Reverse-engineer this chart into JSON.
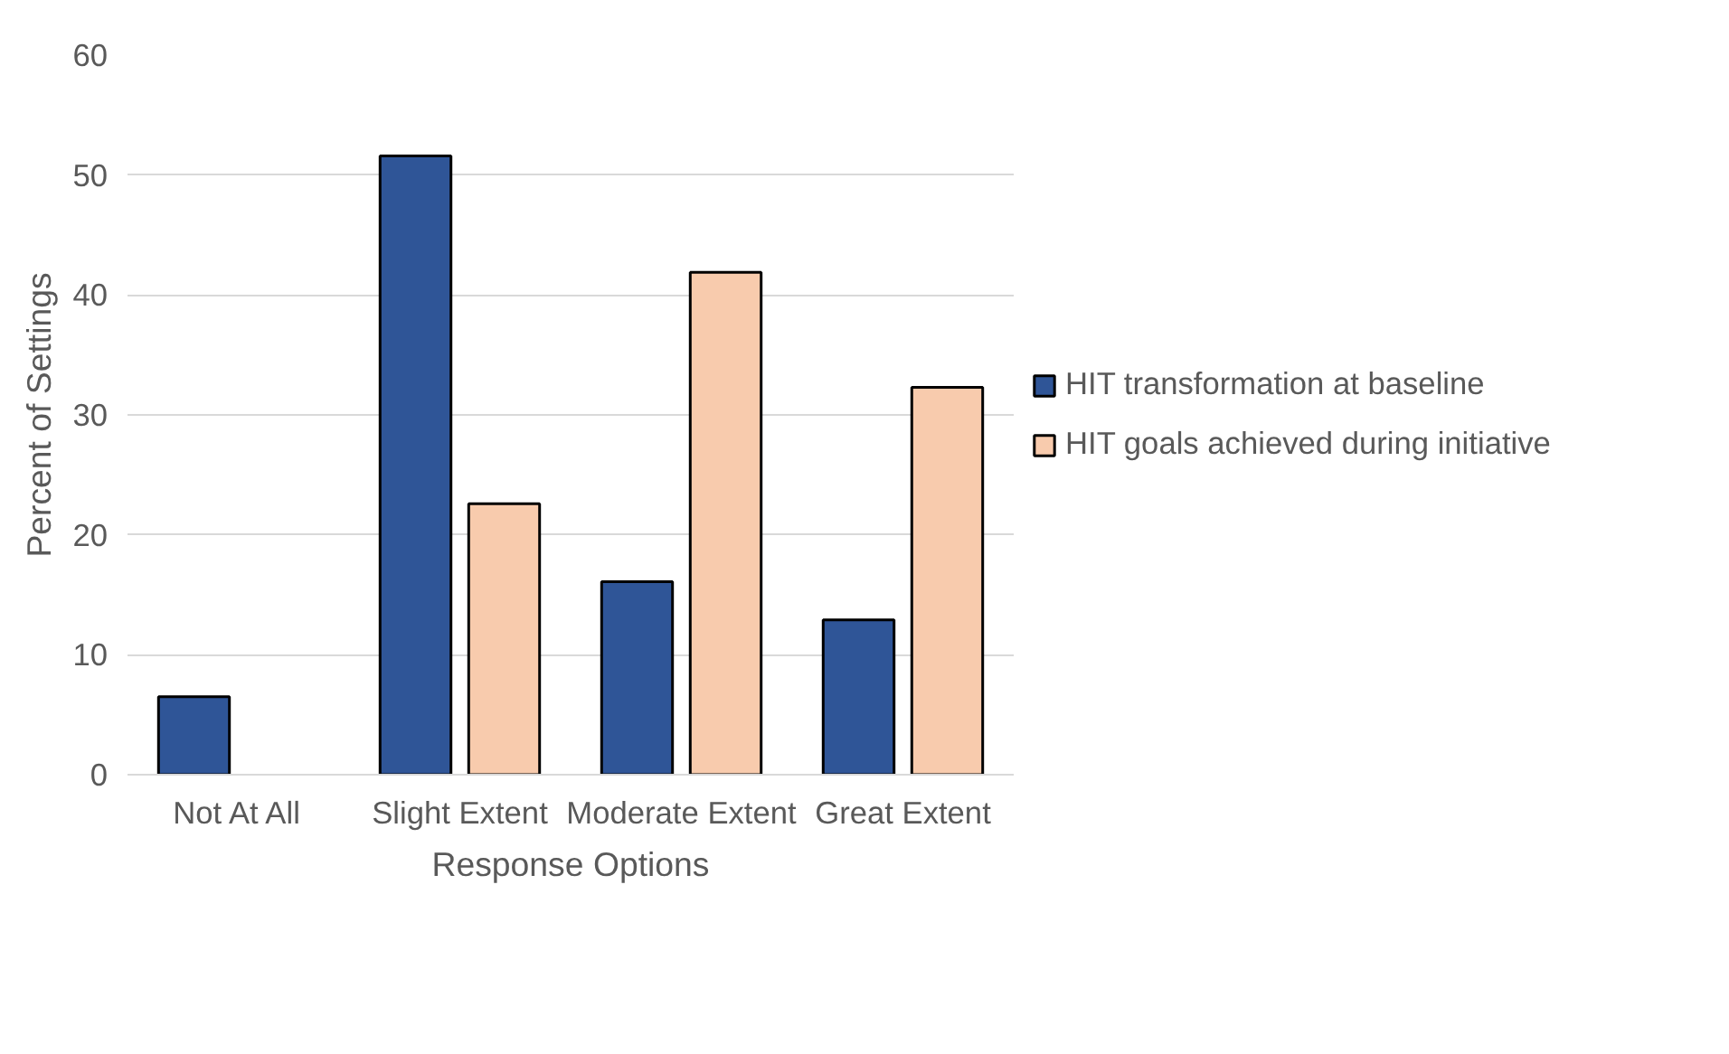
{
  "chart_data": {
    "type": "bar",
    "xlabel": "Response Options",
    "ylabel": "Percent of Settings",
    "categories": [
      "Not At All",
      "Slight Extent",
      "Moderate Extent",
      "Great Extent"
    ],
    "series": [
      {
        "name": "HIT transformation at baseline",
        "color": "#2f5597",
        "values": [
          6.5,
          51.6,
          16.1,
          12.9
        ]
      },
      {
        "name": "HIT goals achieved during initiative",
        "color": "#f8cbad",
        "values": [
          null,
          22.6,
          41.9,
          32.3
        ]
      }
    ],
    "ylim": [
      0,
      60
    ],
    "yticks": [
      0,
      10,
      20,
      30,
      40,
      50,
      60
    ],
    "grid": "y",
    "legend": "right"
  }
}
